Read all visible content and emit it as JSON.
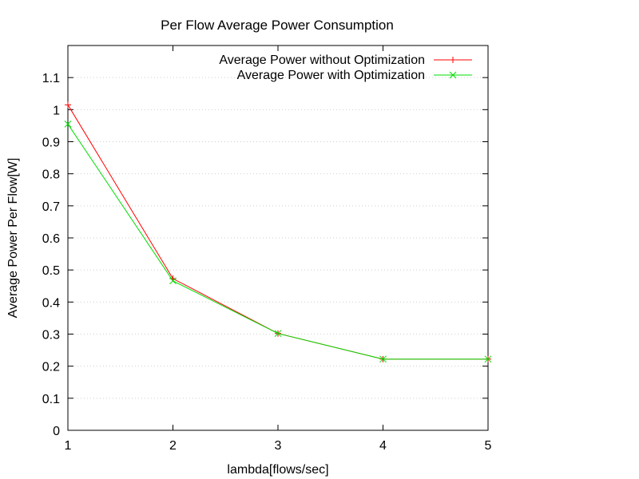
{
  "chart_data": {
    "type": "line",
    "title": "Per Flow Average Power Consumption",
    "xlabel": "lambda[flows/sec]",
    "ylabel": "Average Power Per Flow[W]",
    "xlim": [
      1,
      5
    ],
    "ylim": [
      0,
      1.2
    ],
    "xticks": [
      1,
      2,
      3,
      4,
      5
    ],
    "yticks": [
      0,
      0.1,
      0.2,
      0.3,
      0.4,
      0.5,
      0.6,
      0.7,
      0.8,
      0.9,
      1,
      1.1
    ],
    "grid": true,
    "legend_position": "top-right",
    "x": [
      1,
      2,
      3,
      4,
      5
    ],
    "series": [
      {
        "name": "Average Power without Optimization",
        "values": [
          1.015,
          0.473,
          0.302,
          0.222,
          0.222
        ],
        "color": "#ff0000",
        "marker": "plus"
      },
      {
        "name": "Average Power with Optimization",
        "values": [
          0.955,
          0.466,
          0.302,
          0.222,
          0.222
        ],
        "color": "#00dd00",
        "marker": "cross"
      }
    ]
  }
}
